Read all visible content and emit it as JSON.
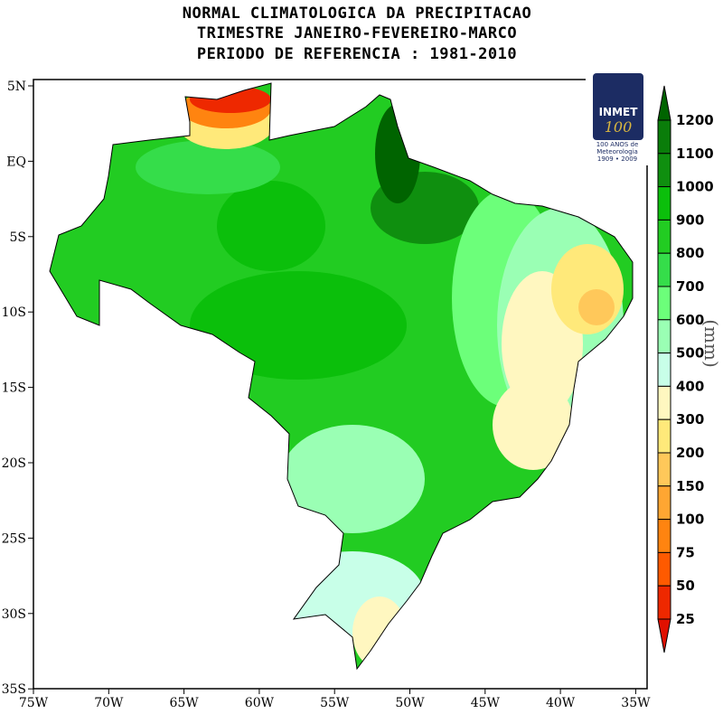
{
  "title": {
    "line1": "NORMAL CLIMATOLOGICA DA PRECIPITACAO",
    "line2": "TRIMESTRE JANEIRO-FEVEREIRO-MARCO",
    "line3": "PERIODO DE REFERENCIA : 1981-2010"
  },
  "lon_ticks": [
    "75W",
    "70W",
    "65W",
    "60W",
    "55W",
    "50W",
    "45W",
    "40W",
    "35W"
  ],
  "lat_ticks": [
    "5N",
    "EQ",
    "5S",
    "10S",
    "15S",
    "20S",
    "25S",
    "30S",
    "35S"
  ],
  "colorbar": {
    "unit": "(mm)",
    "levels": [
      "1200",
      "1100",
      "1000",
      "900",
      "800",
      "700",
      "600",
      "500",
      "400",
      "300",
      "200",
      "150",
      "100",
      "75",
      "50",
      "25"
    ],
    "colors": [
      "#006400",
      "#0a7d0a",
      "#0f8f0f",
      "#0bbf0b",
      "#22cc22",
      "#35dd4a",
      "#6cff7a",
      "#9affb4",
      "#c8ffe8",
      "#fff7c0",
      "#ffe97a",
      "#ffc85a",
      "#ffa632",
      "#ff8410",
      "#ff5a00",
      "#ee2800",
      "#e01000"
    ]
  },
  "logo": {
    "name": "INMET",
    "number": "100",
    "caption1": "100 ANOS de",
    "caption2": "Meteorologia",
    "caption3": "1909 • 2009"
  }
}
